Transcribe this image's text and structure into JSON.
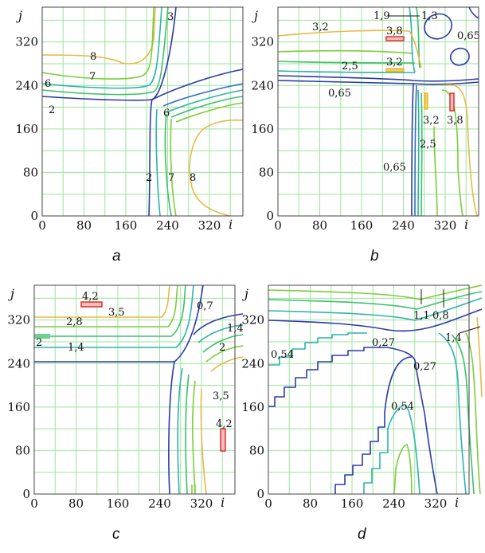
{
  "chart_data": [
    {
      "type": "contour",
      "panel_label": "a",
      "xlabel": "i",
      "ylabel": "j",
      "x_ticks": [
        "0",
        "80",
        "160",
        "240",
        "320"
      ],
      "y_ticks": [
        "0",
        "80",
        "160",
        "240",
        "320"
      ],
      "xlim": [
        0,
        384
      ],
      "ylim": [
        0,
        384
      ],
      "grid": true,
      "contour_labels": [
        "2",
        "3",
        "6",
        "7",
        "8",
        "6",
        "7",
        "8",
        "2"
      ],
      "levels": [
        2,
        3,
        6,
        7,
        8
      ]
    },
    {
      "type": "contour",
      "panel_label": "b",
      "xlabel": "i",
      "ylabel": "j",
      "x_ticks": [
        "0",
        "80",
        "160",
        "240",
        "320"
      ],
      "y_ticks": [
        "0",
        "80",
        "160",
        "240",
        "320"
      ],
      "xlim": [
        0,
        384
      ],
      "ylim": [
        0,
        384
      ],
      "grid": true,
      "contour_labels": [
        "3,2",
        "1,9",
        "1,3",
        "3,8",
        "0,65",
        "2,5",
        "3,2",
        "0,65",
        "3,2",
        "3,8",
        "2,5",
        "0,65"
      ],
      "levels": [
        0.65,
        1.3,
        1.9,
        2.5,
        3.2,
        3.8
      ]
    },
    {
      "type": "contour",
      "panel_label": "c",
      "xlabel": "i",
      "ylabel": "j",
      "x_ticks": [
        "0",
        "80",
        "160",
        "240",
        "320"
      ],
      "y_ticks": [
        "0",
        "80",
        "160",
        "240",
        "320"
      ],
      "xlim": [
        0,
        384
      ],
      "ylim": [
        0,
        384
      ],
      "grid": true,
      "contour_labels": [
        "4,2",
        "3,5",
        "2,8",
        "2",
        "1,4",
        "0,7",
        "1,4",
        "2",
        "3,5",
        "4,2"
      ],
      "levels": [
        0.7,
        1.4,
        2,
        2.8,
        3.5,
        4.2
      ]
    },
    {
      "type": "contour",
      "panel_label": "d",
      "xlabel": "i",
      "ylabel": "j",
      "x_ticks": [
        "0",
        "80",
        "160",
        "240",
        "320"
      ],
      "y_ticks": [
        "0",
        "80",
        "160",
        "240",
        "320"
      ],
      "xlim": [
        0,
        384
      ],
      "ylim": [
        0,
        384
      ],
      "grid": true,
      "contour_labels": [
        "1,1",
        "0,8",
        "0,27",
        "1,4",
        "0,54",
        "0,27",
        "0,54"
      ],
      "levels": [
        0.27,
        0.54,
        0.8,
        1.1,
        1.4
      ]
    }
  ]
}
